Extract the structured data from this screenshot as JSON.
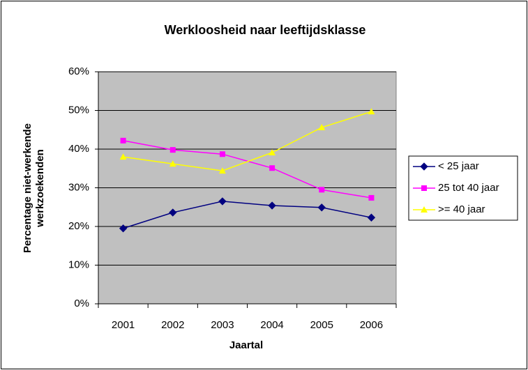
{
  "chart_data": {
    "type": "line",
    "title": "Werkloosheid naar leeftijdsklasse",
    "xlabel": "Jaartal",
    "ylabel": [
      "Percentage niet-werkende",
      "werkzoekenden"
    ],
    "categories": [
      "2001",
      "2002",
      "2003",
      "2004",
      "2005",
      "2006"
    ],
    "series": [
      {
        "name": "< 25 jaar",
        "color": "#000080",
        "marker": "diamond",
        "values": [
          19.5,
          23.6,
          26.5,
          25.4,
          24.9,
          22.3
        ]
      },
      {
        "name": "25 tot 40 jaar",
        "color": "#ff00ff",
        "marker": "square",
        "values": [
          42.2,
          39.8,
          38.7,
          35.1,
          29.5,
          27.4
        ]
      },
      {
        "name": ">= 40 jaar",
        "color": "#ffff00",
        "marker": "triangle",
        "values": [
          38.0,
          36.2,
          34.4,
          39.1,
          45.6,
          49.7
        ]
      }
    ],
    "ylim": [
      0,
      60
    ],
    "yticks": [
      {
        "value": 0,
        "label": "0%"
      },
      {
        "value": 10,
        "label": "10%"
      },
      {
        "value": 20,
        "label": "20%"
      },
      {
        "value": 30,
        "label": "30%"
      },
      {
        "value": 40,
        "label": "40%"
      },
      {
        "value": 50,
        "label": "50%"
      },
      {
        "value": 60,
        "label": "60%"
      }
    ],
    "grid": true,
    "legend": "right"
  }
}
